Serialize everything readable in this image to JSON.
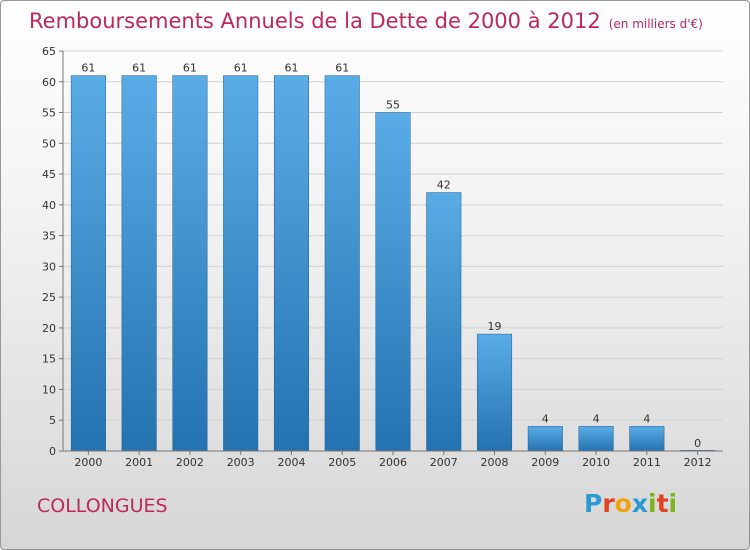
{
  "header": {
    "title": "Remboursements Annuels de la Dette de 2000 à 2012",
    "unit": "(en milliers d'€)"
  },
  "footer": {
    "commune": "COLLONGUES",
    "logo": [
      "P",
      "r",
      "o",
      "x",
      "i",
      "t",
      "i"
    ],
    "logo_colors": [
      "#2a9ad4",
      "#e2421d",
      "#f0a50f",
      "#2a9ad4",
      "#7ab51d",
      "#e2421d",
      "#7ab51d"
    ]
  },
  "chart_data": {
    "type": "bar",
    "title": "Remboursements Annuels de la Dette de 2000 à 2012",
    "categories": [
      "2000",
      "2001",
      "2002",
      "2003",
      "2004",
      "2005",
      "2006",
      "2007",
      "2008",
      "2009",
      "2010",
      "2011",
      "2012"
    ],
    "values": [
      61,
      61,
      61,
      61,
      61,
      61,
      55,
      42,
      19,
      4,
      4,
      4,
      0
    ],
    "value_labels": [
      "61",
      "61",
      "61",
      "61",
      "61",
      "61",
      "55",
      "42",
      "19",
      "4",
      "4",
      "4",
      "0"
    ],
    "ylim": [
      0,
      65
    ],
    "yticks": [
      "0",
      "5",
      "10",
      "15",
      "20",
      "25",
      "30",
      "35",
      "40",
      "45",
      "50",
      "55",
      "60",
      "65"
    ],
    "grid": true,
    "bar_color_top": "#5aace6",
    "bar_color_bottom": "#2472b0"
  }
}
